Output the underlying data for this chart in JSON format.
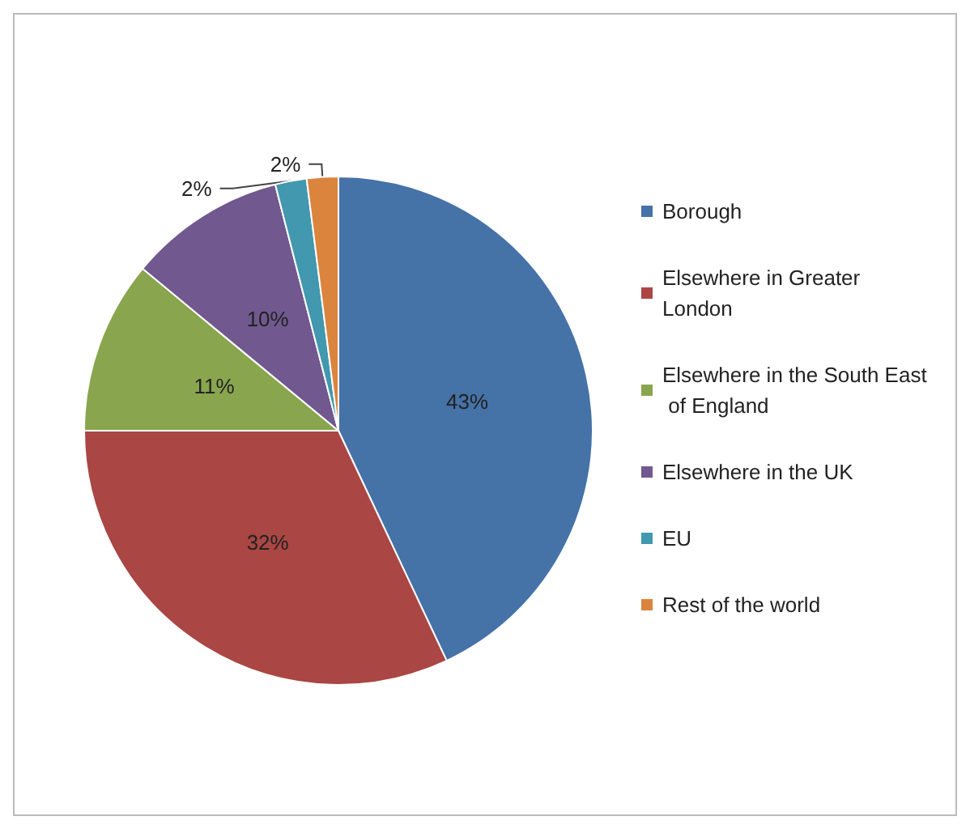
{
  "chart_data": {
    "type": "pie",
    "categories": [
      "Borough",
      "Elsewhere in Greater London",
      "Elsewhere in the South East of England",
      "Elsewhere in the UK",
      "EU",
      "Rest of the world"
    ],
    "values": [
      43,
      32,
      11,
      10,
      2,
      2
    ],
    "colors": [
      "#4572a7",
      "#aa4643",
      "#89a54e",
      "#71588f",
      "#4198af",
      "#db843d"
    ],
    "value_labels": [
      "43%",
      "32%",
      "11%",
      "10%",
      "2%",
      "2%"
    ],
    "legend": "right"
  }
}
